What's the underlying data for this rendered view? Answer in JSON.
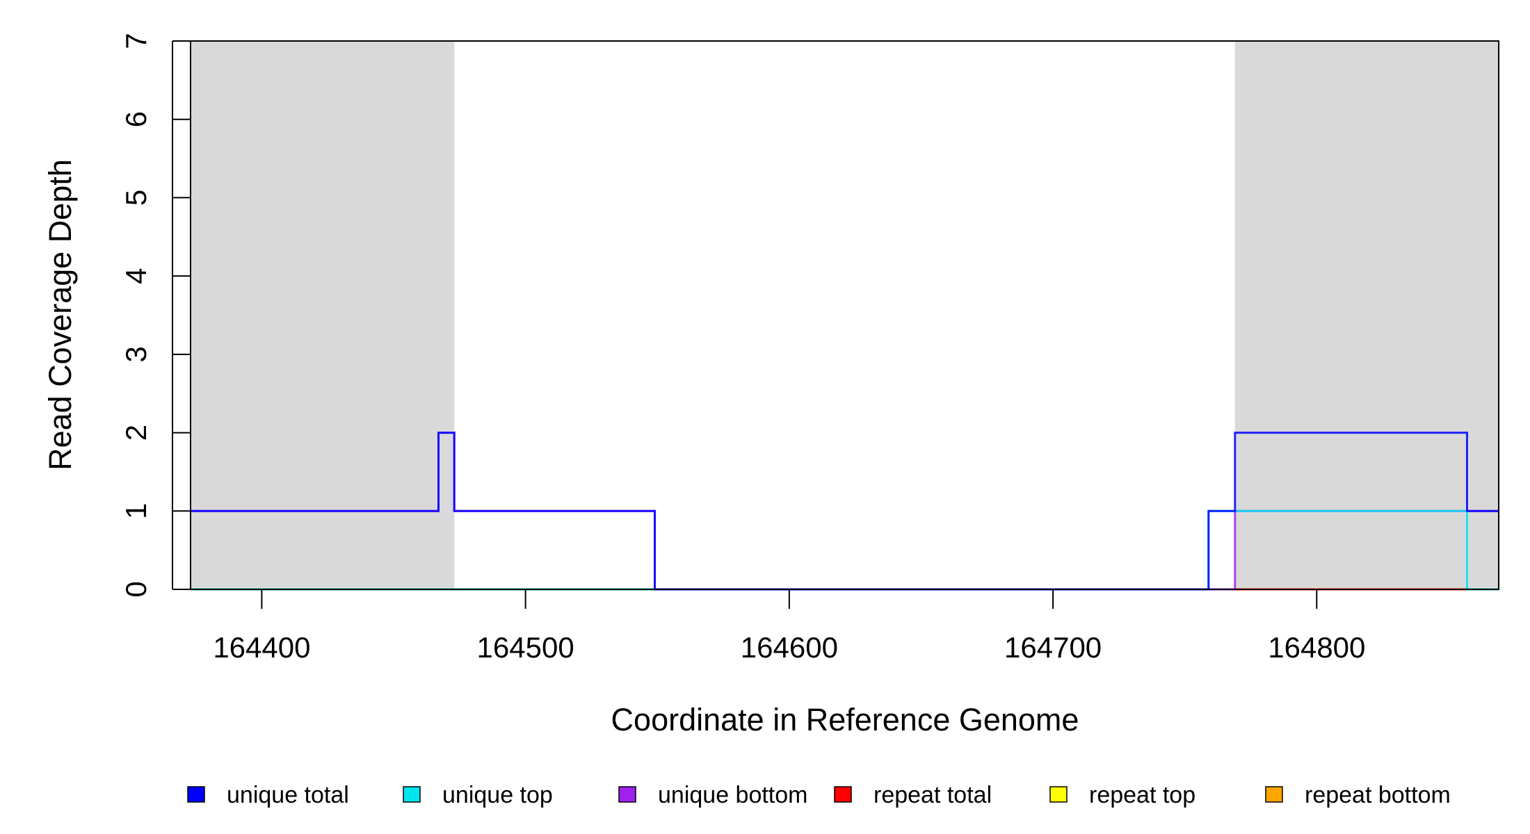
{
  "chart_data": {
    "type": "line",
    "line_style": "step",
    "xlabel": "Coordinate in Reference Genome",
    "ylabel": "Read Coverage Depth",
    "xlim": [
      164373,
      164869
    ],
    "ylim": [
      0,
      7
    ],
    "x_ticks": [
      164400,
      164500,
      164600,
      164700,
      164800
    ],
    "y_ticks": [
      0,
      1,
      2,
      3,
      4,
      5,
      6,
      7
    ],
    "shaded_regions": [
      {
        "from": 164373,
        "to": 164473,
        "color": "#d9d9d9"
      },
      {
        "from": 164769,
        "to": 164869,
        "color": "#d9d9d9"
      }
    ],
    "series": [
      {
        "name": "unique total",
        "color": "#0000ff",
        "points": [
          [
            164373,
            1
          ],
          [
            164467,
            1
          ],
          [
            164467,
            2
          ],
          [
            164473,
            2
          ],
          [
            164473,
            1
          ],
          [
            164549,
            1
          ],
          [
            164549,
            0
          ],
          [
            164759,
            0
          ],
          [
            164759,
            1
          ],
          [
            164769,
            1
          ],
          [
            164769,
            2
          ],
          [
            164857,
            2
          ],
          [
            164857,
            1
          ],
          [
            164869,
            1
          ]
        ]
      },
      {
        "name": "unique top",
        "color": "#00e5ee",
        "points": [
          [
            164373,
            0
          ],
          [
            164759,
            0
          ],
          [
            164759,
            1
          ],
          [
            164857,
            1
          ],
          [
            164857,
            0
          ],
          [
            164869,
            0
          ]
        ]
      },
      {
        "name": "unique bottom",
        "color": "#a020f0",
        "points": [
          [
            164373,
            1
          ],
          [
            164467,
            1
          ],
          [
            164467,
            2
          ],
          [
            164473,
            2
          ],
          [
            164473,
            1
          ],
          [
            164549,
            1
          ],
          [
            164549,
            0
          ],
          [
            164769,
            0
          ],
          [
            164769,
            1
          ],
          [
            164869,
            1
          ]
        ]
      },
      {
        "name": "repeat total",
        "color": "#ff0000",
        "points": [
          [
            164373,
            0
          ],
          [
            164869,
            0
          ]
        ]
      },
      {
        "name": "repeat top",
        "color": "#ffff00",
        "points": [
          [
            164373,
            0
          ],
          [
            164869,
            0
          ]
        ]
      },
      {
        "name": "repeat bottom",
        "color": "#ffa500",
        "points": [
          [
            164373,
            0
          ],
          [
            164869,
            0
          ]
        ]
      }
    ],
    "legend_position": "bottom"
  }
}
